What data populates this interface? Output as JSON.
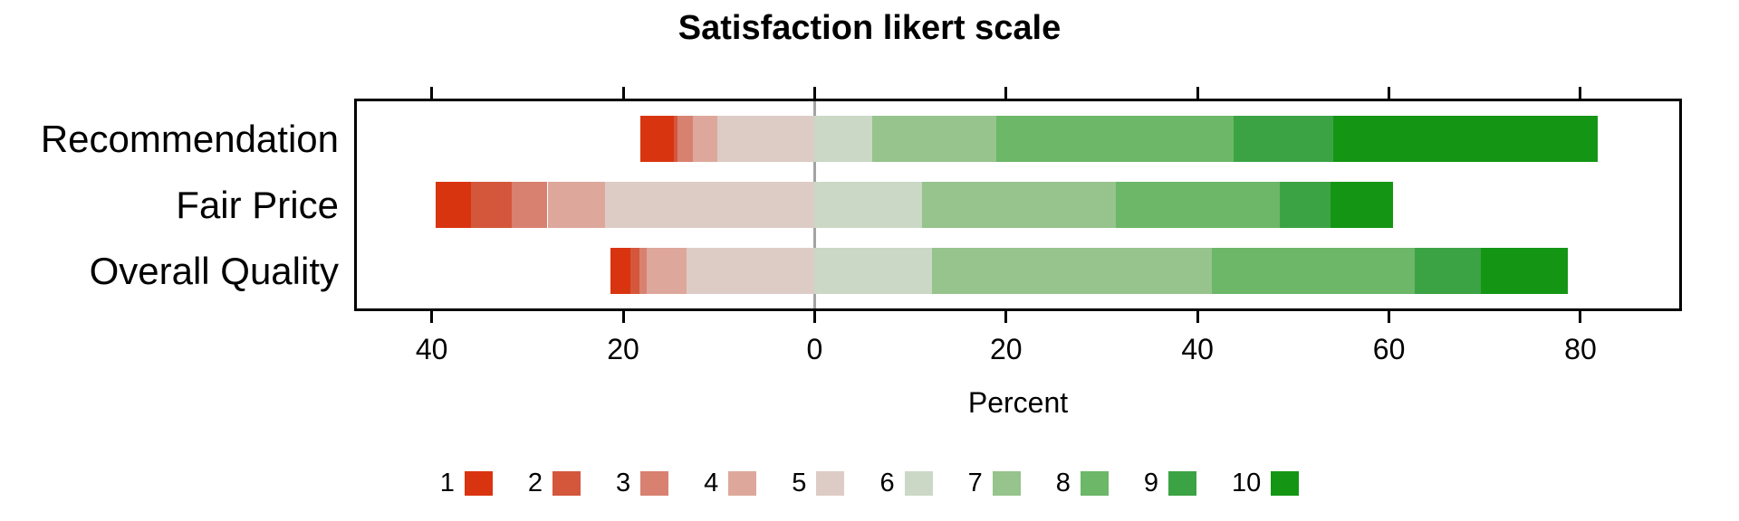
{
  "chart_data": {
    "type": "bar",
    "variant": "diverging-stacked-likert",
    "orientation": "horizontal",
    "title": "Satisfaction likert scale",
    "xlabel": "Percent",
    "categories": [
      "Recommendation",
      "Fair Price",
      "Overall Quality"
    ],
    "series": [
      {
        "name": "1",
        "color": "#d93410",
        "values": [
          3.5,
          3.7,
          2.1
        ]
      },
      {
        "name": "2",
        "color": "#d4573c",
        "values": [
          0.4,
          4.3,
          0.9
        ]
      },
      {
        "name": "3",
        "color": "#d98170",
        "values": [
          1.6,
          3.7,
          0.8
        ]
      },
      {
        "name": "4",
        "color": "#dda89b",
        "values": [
          2.5,
          6.0,
          4.1
        ]
      },
      {
        "name": "5",
        "color": "#ddccc5",
        "values": [
          10.2,
          21.9,
          13.4
        ]
      },
      {
        "name": "6",
        "color": "#cbd8c6",
        "values": [
          6.0,
          11.2,
          12.3
        ]
      },
      {
        "name": "7",
        "color": "#96c48c",
        "values": [
          13.0,
          20.3,
          29.2
        ]
      },
      {
        "name": "8",
        "color": "#6cb768",
        "values": [
          24.8,
          17.1,
          21.2
        ]
      },
      {
        "name": "9",
        "color": "#3ca345",
        "values": [
          10.4,
          5.3,
          6.9
        ]
      },
      {
        "name": "10",
        "color": "#149614",
        "values": [
          27.6,
          6.5,
          9.1
        ]
      }
    ],
    "negative_series": [
      "1",
      "2",
      "3",
      "4",
      "5"
    ],
    "x_ticks": [
      -40,
      -20,
      0,
      20,
      40,
      60,
      80
    ],
    "x_tick_labels": [
      "40",
      "20",
      "0",
      "20",
      "40",
      "60",
      "80"
    ],
    "xlim": [
      -48.1,
      90.6
    ],
    "zero_line_color": "#a3a3a3",
    "axis_color": "#000000",
    "legend_position": "bottom",
    "grid": false
  }
}
